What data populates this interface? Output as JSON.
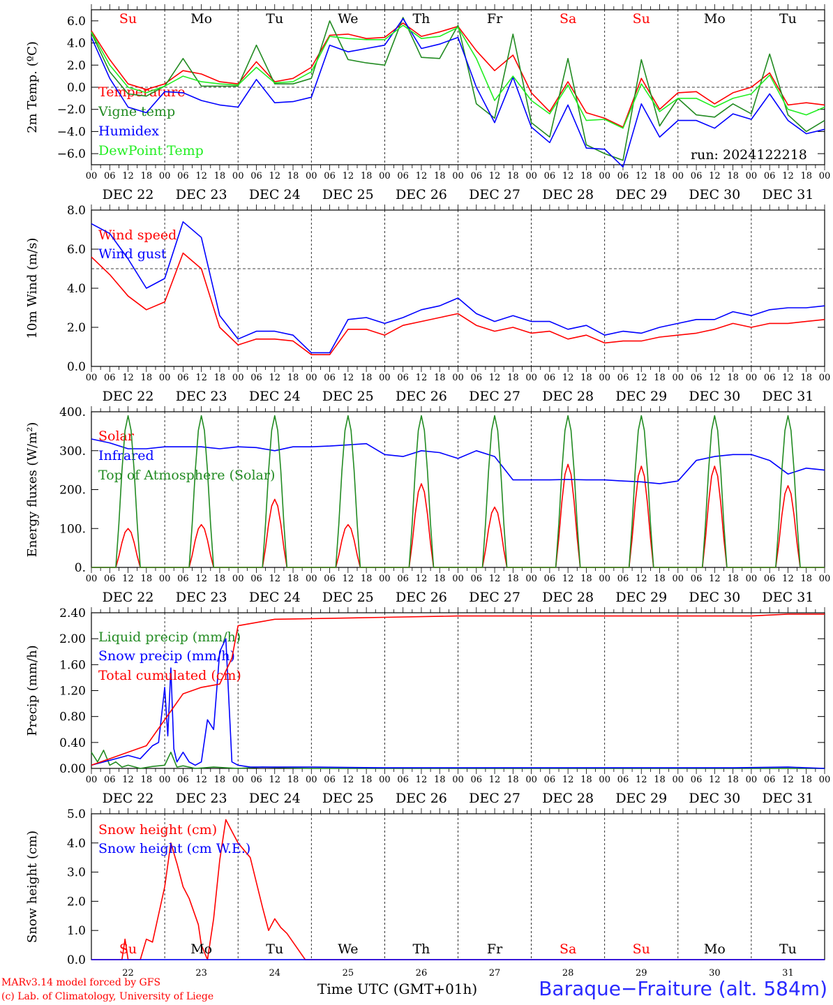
{
  "run_label": "run: 2024122218",
  "day_names": [
    "Su",
    "Mo",
    "Tu",
    "We",
    "Th",
    "Fr",
    "Sa",
    "Su",
    "Mo",
    "Tu"
  ],
  "day_name_colors": [
    "#ff0000",
    "#000000",
    "#000000",
    "#000000",
    "#000000",
    "#000000",
    "#ff0000",
    "#ff0000",
    "#000000",
    "#000000"
  ],
  "date_labels": [
    "DEC 22",
    "DEC 23",
    "DEC 24",
    "DEC 25",
    "DEC 26",
    "DEC 27",
    "DEC 28",
    "DEC 29",
    "DEC 30",
    "DEC 31"
  ],
  "hour_ticks": [
    "00",
    "06",
    "12",
    "18"
  ],
  "bottom_day_numbers": [
    "22",
    "23",
    "24",
    "25",
    "26",
    "27",
    "28",
    "29",
    "30",
    "31"
  ],
  "footer": {
    "model": "MARv3.14 model forced by GFS",
    "lab": "(c) Lab. of Climatology, University of Liege",
    "x_title": "Time UTC (GMT+01h)",
    "station": "Baraque−Fraiture (alt. 584m)"
  },
  "chart_data": [
    {
      "type": "line",
      "ylabel": "2m Temp. (ºC)",
      "ylim": [
        -7,
        7
      ],
      "yticks": [
        "6.0",
        "4.0",
        "2.0",
        "0.0",
        "−2.0",
        "−4.0",
        "−6.0"
      ],
      "ytick_values": [
        6,
        4,
        2,
        0,
        -2,
        -4,
        -6
      ],
      "reference_line": 0,
      "x_unit": "hours since 2024-12-22 00 UTC",
      "series": [
        {
          "name": "Temperature",
          "color": "#ff0000",
          "x": [
            0,
            6,
            12,
            18,
            24,
            30,
            36,
            42,
            48,
            54,
            60,
            66,
            72,
            78,
            84,
            90,
            96,
            102,
            108,
            114,
            120,
            126,
            132,
            138,
            144,
            150,
            156,
            162,
            168,
            174,
            180,
            186,
            192,
            198,
            204,
            210,
            216,
            222,
            228,
            234,
            240
          ],
          "y": [
            5.1,
            2.5,
            0.3,
            -0.2,
            0.3,
            1.5,
            1.2,
            0.5,
            0.3,
            2.3,
            0.5,
            0.8,
            1.8,
            4.7,
            4.8,
            4.4,
            4.5,
            5.8,
            4.6,
            5.0,
            5.5,
            3.3,
            1.5,
            2.9,
            -0.5,
            -2.2,
            0.5,
            -2.3,
            -2.8,
            -3.6,
            0.8,
            -2.0,
            -0.5,
            -0.4,
            -1.5,
            -0.5,
            0.0,
            1.3,
            -1.6,
            -1.4,
            -1.6
          ]
        },
        {
          "name": "Vigne temp",
          "color": "#228b22",
          "x": [
            0,
            6,
            12,
            18,
            24,
            30,
            36,
            42,
            48,
            54,
            60,
            66,
            72,
            78,
            84,
            90,
            96,
            102,
            108,
            114,
            120,
            126,
            132,
            138,
            144,
            150,
            156,
            162,
            168,
            174,
            180,
            186,
            192,
            198,
            204,
            210,
            216,
            222,
            228,
            234,
            240
          ],
          "y": [
            4.9,
            1.4,
            -0.6,
            -0.8,
            0.1,
            2.6,
            0.1,
            0.1,
            0.1,
            3.8,
            0.3,
            0.3,
            0.8,
            6.0,
            2.5,
            2.2,
            2.0,
            6.3,
            2.7,
            2.6,
            5.6,
            -1.5,
            -2.8,
            4.8,
            -3.2,
            -4.5,
            2.6,
            -5.2,
            -6.0,
            -6.6,
            2.5,
            -3.5,
            -1.0,
            -2.5,
            -2.7,
            -1.5,
            -2.4,
            3.0,
            -2.5,
            -4.0,
            -3.0
          ]
        },
        {
          "name": "Humidex",
          "color": "#0000ff",
          "x": [
            0,
            6,
            12,
            18,
            24,
            30,
            36,
            42,
            48,
            54,
            60,
            66,
            72,
            78,
            84,
            90,
            96,
            102,
            108,
            114,
            120,
            126,
            132,
            138,
            144,
            150,
            156,
            162,
            168,
            174,
            180,
            186,
            192,
            198,
            204,
            210,
            216,
            222,
            228,
            234,
            240
          ],
          "y": [
            4.5,
            0.8,
            -1.8,
            -2.3,
            -0.4,
            -0.5,
            -1.2,
            -1.6,
            -1.8,
            0.7,
            -1.4,
            -1.3,
            -0.9,
            3.8,
            3.2,
            3.5,
            3.8,
            6.2,
            3.5,
            3.9,
            4.5,
            0.0,
            -3.2,
            0.9,
            -3.6,
            -5.0,
            -1.6,
            -5.5,
            -5.6,
            -7.2,
            -1.5,
            -4.5,
            -3.0,
            -3.0,
            -3.7,
            -2.4,
            -2.9,
            -0.6,
            -3.0,
            -4.2,
            -3.8
          ]
        },
        {
          "name": "DewPoint Temp",
          "color": "#22ee22",
          "x": [
            0,
            6,
            12,
            18,
            24,
            30,
            36,
            42,
            48,
            54,
            60,
            66,
            72,
            78,
            84,
            90,
            96,
            102,
            108,
            114,
            120,
            126,
            132,
            138,
            144,
            150,
            156,
            162,
            168,
            174,
            180,
            186,
            192,
            198,
            204,
            210,
            216,
            222,
            228,
            234,
            240
          ],
          "y": [
            5.0,
            2.0,
            0.0,
            -0.5,
            0.1,
            1.0,
            0.5,
            0.3,
            0.2,
            1.8,
            0.4,
            0.5,
            1.4,
            4.6,
            4.4,
            4.3,
            4.3,
            5.6,
            4.4,
            4.6,
            5.4,
            2.6,
            -1.2,
            1.0,
            -1.2,
            -2.4,
            0.2,
            -3.0,
            -2.9,
            -3.7,
            0.3,
            -2.2,
            -1.0,
            -1.0,
            -1.8,
            -1.0,
            -0.6,
            1.1,
            -2.0,
            -2.5,
            -1.8
          ]
        }
      ]
    },
    {
      "type": "line",
      "ylabel": "10m Wind (m/s)",
      "ylim": [
        0,
        8
      ],
      "yticks": [
        "8.0",
        "6.0",
        "4.0",
        "2.0",
        "0.0"
      ],
      "ytick_values": [
        8,
        6,
        4,
        2,
        0
      ],
      "reference_line": 5,
      "series": [
        {
          "name": "Wind speed",
          "color": "#ff0000",
          "x": [
            0,
            6,
            12,
            18,
            24,
            30,
            36,
            42,
            48,
            54,
            60,
            66,
            72,
            78,
            84,
            90,
            96,
            102,
            108,
            114,
            120,
            126,
            132,
            138,
            144,
            150,
            156,
            162,
            168,
            174,
            180,
            186,
            192,
            198,
            204,
            210,
            216,
            222,
            228,
            234,
            240
          ],
          "y": [
            5.6,
            4.7,
            3.6,
            2.9,
            3.3,
            5.8,
            5.0,
            2.0,
            1.1,
            1.4,
            1.4,
            1.3,
            0.6,
            0.6,
            1.9,
            1.9,
            1.6,
            2.1,
            2.3,
            2.5,
            2.7,
            2.1,
            1.8,
            2.0,
            1.7,
            1.8,
            1.4,
            1.6,
            1.2,
            1.3,
            1.3,
            1.5,
            1.6,
            1.7,
            1.9,
            2.2,
            2.0,
            2.2,
            2.2,
            2.3,
            2.4
          ]
        },
        {
          "name": "Wind gust",
          "color": "#0000ff",
          "x": [
            0,
            6,
            12,
            18,
            24,
            30,
            36,
            42,
            48,
            54,
            60,
            66,
            72,
            78,
            84,
            90,
            96,
            102,
            108,
            114,
            120,
            126,
            132,
            138,
            144,
            150,
            156,
            162,
            168,
            174,
            180,
            186,
            192,
            198,
            204,
            210,
            216,
            222,
            228,
            234,
            240
          ],
          "y": [
            7.3,
            6.8,
            5.5,
            4.0,
            4.5,
            7.4,
            6.6,
            2.6,
            1.4,
            1.8,
            1.8,
            1.6,
            0.7,
            0.7,
            2.4,
            2.5,
            2.2,
            2.5,
            2.9,
            3.1,
            3.5,
            2.7,
            2.3,
            2.6,
            2.3,
            2.3,
            1.9,
            2.1,
            1.6,
            1.8,
            1.7,
            2.0,
            2.2,
            2.4,
            2.4,
            2.8,
            2.6,
            2.9,
            3.0,
            3.0,
            3.1
          ]
        }
      ]
    },
    {
      "type": "line",
      "ylabel": "Energy fluxes (W/m²)",
      "ylim": [
        0,
        400
      ],
      "yticks": [
        "400.",
        "300.",
        "200.",
        "100.",
        "0."
      ],
      "ytick_values": [
        400,
        300,
        200,
        100,
        0
      ],
      "series": [
        {
          "name": "Solar",
          "color": "#ff0000",
          "daily_peaks": [
            100,
            110,
            175,
            110,
            215,
            155,
            265,
            260,
            260,
            210
          ]
        },
        {
          "name": "Infrared",
          "color": "#0000ff",
          "x": [
            0,
            6,
            12,
            18,
            24,
            30,
            36,
            42,
            48,
            54,
            60,
            66,
            72,
            78,
            84,
            90,
            96,
            102,
            108,
            114,
            120,
            126,
            132,
            138,
            144,
            150,
            156,
            162,
            168,
            174,
            180,
            186,
            192,
            198,
            204,
            210,
            216,
            222,
            228,
            234,
            240
          ],
          "y": [
            330,
            320,
            305,
            305,
            310,
            310,
            310,
            305,
            310,
            308,
            300,
            310,
            310,
            312,
            315,
            318,
            290,
            285,
            300,
            295,
            280,
            300,
            285,
            225,
            225,
            225,
            226,
            225,
            225,
            222,
            220,
            215,
            222,
            275,
            285,
            290,
            290,
            275,
            240,
            255,
            250
          ]
        },
        {
          "name": "Top of Atmosphere (Solar)",
          "color": "#228b22",
          "daily_peaks": [
            390,
            390,
            390,
            390,
            390,
            390,
            390,
            390,
            390,
            390
          ]
        }
      ]
    },
    {
      "type": "line",
      "ylabel": "Precip (mm/h)",
      "ylim": [
        0,
        2.4
      ],
      "yticks": [
        "2.40",
        "2.00",
        "1.60",
        "1.20",
        "0.80",
        "0.40",
        "0.00"
      ],
      "ytick_values": [
        2.4,
        2.0,
        1.6,
        1.2,
        0.8,
        0.4,
        0.0
      ],
      "series": [
        {
          "name": "Liquid precip (mm/h)",
          "color": "#228b22",
          "x": [
            0,
            2,
            4,
            6,
            8,
            10,
            12,
            16,
            20,
            24,
            26,
            28,
            30,
            34,
            40,
            48,
            56,
            72,
            96,
            120,
            240
          ],
          "y": [
            0.25,
            0.1,
            0.28,
            0.05,
            0.1,
            0.02,
            0.05,
            0.0,
            0.03,
            0.05,
            0.25,
            0.02,
            0.04,
            0.0,
            0.02,
            0.0,
            0.02,
            0.0,
            0.0,
            0.0,
            0.0
          ]
        },
        {
          "name": "Snow precip (mm/h)",
          "color": "#0000ff",
          "x": [
            0,
            4,
            8,
            12,
            16,
            18,
            20,
            22,
            24,
            25,
            26,
            27,
            28,
            30,
            32,
            34,
            36,
            38,
            40,
            42,
            44,
            46,
            48,
            52,
            60,
            72,
            96,
            120,
            150,
            180,
            210,
            228,
            240
          ],
          "y": [
            0.05,
            0.1,
            0.15,
            0.2,
            0.15,
            0.25,
            0.35,
            0.4,
            1.25,
            0.5,
            1.55,
            0.3,
            0.1,
            0.25,
            0.1,
            0.05,
            0.1,
            0.75,
            0.6,
            1.8,
            2.0,
            0.1,
            0.05,
            0.02,
            0.02,
            0.02,
            0.01,
            0.01,
            0.01,
            0.01,
            0.01,
            0.02,
            0.0
          ]
        },
        {
          "name": "Total cumulated (cm)",
          "color": "#ff0000",
          "x": [
            0,
            6,
            12,
            18,
            24,
            30,
            36,
            42,
            46,
            48,
            60,
            72,
            96,
            120,
            180,
            216,
            228,
            240
          ],
          "y": [
            0.05,
            0.15,
            0.25,
            0.35,
            0.75,
            1.15,
            1.25,
            1.3,
            1.7,
            2.2,
            2.3,
            2.31,
            2.33,
            2.35,
            2.35,
            2.35,
            2.38,
            2.38
          ]
        }
      ]
    },
    {
      "type": "line",
      "ylabel": "Snow height (cm)",
      "ylim": [
        0,
        5
      ],
      "yticks": [
        "5.0",
        "4.0",
        "3.0",
        "2.0",
        "1.0",
        "0.0"
      ],
      "ytick_values": [
        5,
        4,
        3,
        2,
        1,
        0
      ],
      "series": [
        {
          "name": "Snow height (cm)",
          "color": "#ff0000",
          "x": [
            0,
            10,
            11,
            12,
            16,
            18,
            20,
            24,
            26,
            28,
            30,
            32,
            35,
            36,
            38,
            40,
            42,
            44,
            46,
            48,
            52,
            56,
            58,
            60,
            62,
            64,
            66,
            70,
            72,
            240
          ],
          "y": [
            0,
            0,
            0.7,
            0,
            0,
            0.7,
            0.6,
            2.5,
            4.0,
            3.3,
            2.5,
            2.1,
            1.2,
            0.5,
            0,
            1.4,
            3.4,
            4.8,
            4.4,
            4.0,
            3.5,
            1.8,
            1.0,
            1.4,
            1.1,
            0.9,
            0.6,
            0,
            0,
            0
          ]
        },
        {
          "name": "Snow height (cm W.E.)",
          "color": "#0000ff",
          "x": [
            0,
            240
          ],
          "y": [
            0,
            0
          ]
        }
      ]
    }
  ]
}
